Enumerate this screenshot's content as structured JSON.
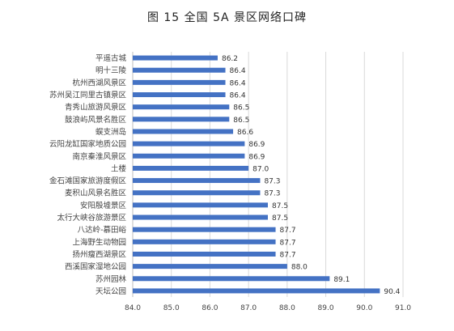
{
  "chart_data": {
    "type": "bar",
    "orientation": "horizontal",
    "title": "图 15  全国 5A 景区网络口碑",
    "xlabel": "",
    "ylabel": "",
    "xlim": [
      84.0,
      91.0
    ],
    "xticks": [
      "84.0",
      "85.0",
      "86.0",
      "87.0",
      "88.0",
      "89.0",
      "90.0",
      "91.0"
    ],
    "grid": true,
    "legend": "none",
    "bar_color": "#4472C4",
    "categories": [
      "平遥古城",
      "明十三陵",
      "杭州西湖风景区",
      "苏州吴江同里古镇景区",
      "青秀山旅游风景区",
      "鼓浪屿风景名胜区",
      "蜈支洲岛",
      "云阳龙缸国家地质公园",
      "南京秦淮风景区",
      "土楼",
      "金石滩国家旅游度假区",
      "麦积山风景名胜区",
      "安阳殷墟景区",
      "太行大峡谷旅游景区",
      "八达岭-慕田峪",
      "上海野生动物园",
      "扬州瘦西湖景区",
      "西溪国家湿地公园",
      "苏州园林",
      "天坛公园"
    ],
    "values": [
      86.2,
      86.4,
      86.4,
      86.4,
      86.5,
      86.5,
      86.6,
      86.9,
      86.9,
      87.0,
      87.3,
      87.3,
      87.5,
      87.5,
      87.7,
      87.7,
      87.7,
      88.0,
      89.1,
      90.4
    ],
    "value_labels": [
      "86.2",
      "86.4",
      "86.4",
      "86.4",
      "86.5",
      "86.5",
      "86.6",
      "86.9",
      "86.9",
      "87.0",
      "87.3",
      "87.3",
      "87.5",
      "87.5",
      "87.7",
      "87.7",
      "87.7",
      "88.0",
      "89.1",
      "90.4"
    ]
  }
}
